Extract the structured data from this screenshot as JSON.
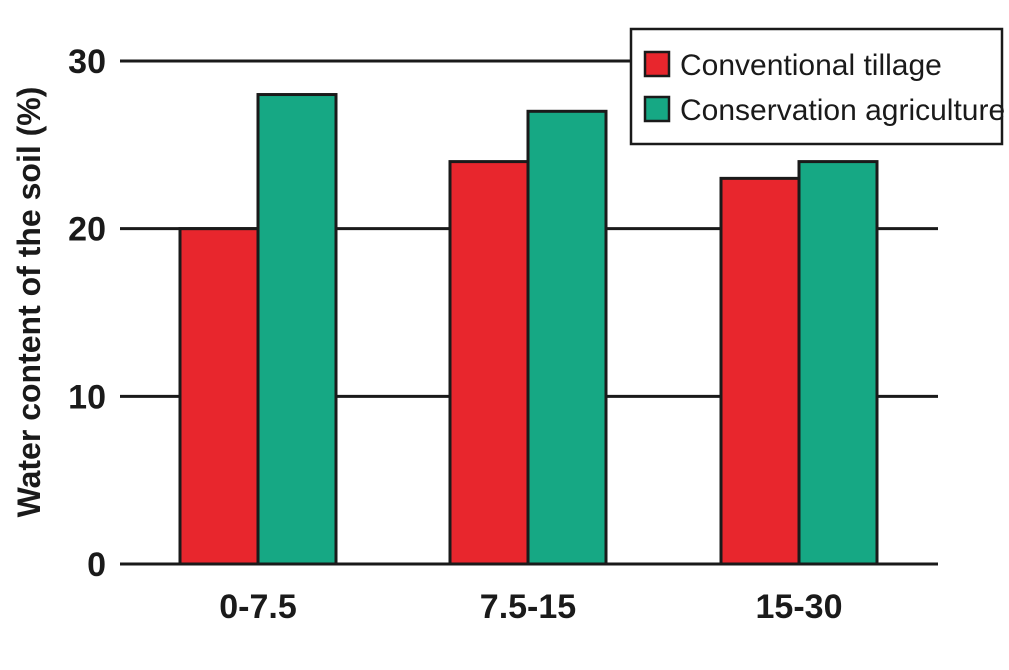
{
  "chart_data": {
    "type": "bar",
    "categories": [
      "0-7.5",
      "7.5-15",
      "15-30"
    ],
    "series": [
      {
        "name": "Conventional tillage",
        "values": [
          20,
          24,
          23
        ],
        "color": "#e8262d"
      },
      {
        "name": "Conservation agriculture",
        "values": [
          28,
          27,
          24
        ],
        "color": "#16a884"
      }
    ],
    "title": "",
    "xlabel": "",
    "ylabel": "Water content of the soil (%)",
    "ylim": [
      0,
      30
    ],
    "yticks": [
      0,
      10,
      20,
      30
    ],
    "grid": true,
    "legend_position": "top-right"
  }
}
